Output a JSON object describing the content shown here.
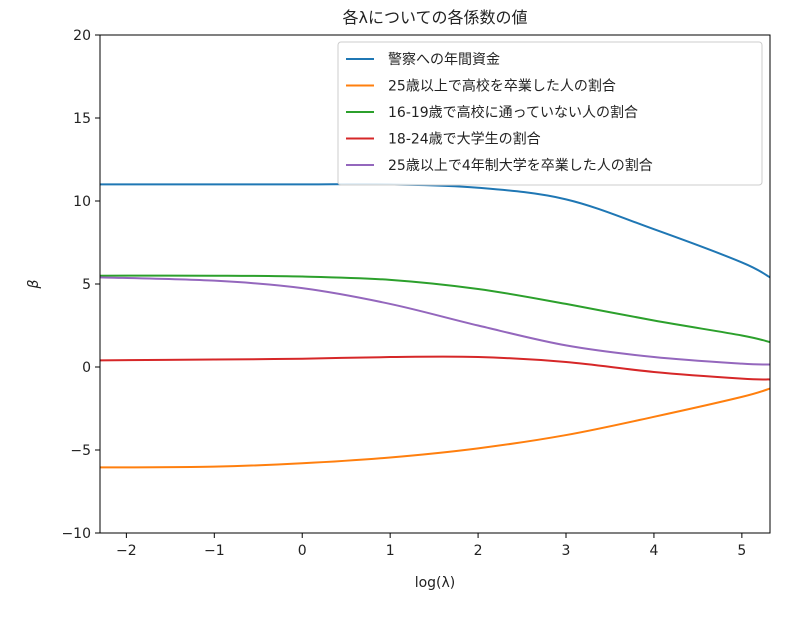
{
  "chart_data": {
    "type": "line",
    "title": "各λについての各係数の値",
    "xlabel": "log(λ)",
    "ylabel": "β",
    "xlim": [
      -2.3,
      5.32
    ],
    "ylim": [
      -10,
      20
    ],
    "xticks": [
      -2,
      -1,
      0,
      1,
      2,
      3,
      4,
      5
    ],
    "xtick_labels": [
      "−2",
      "−1",
      "0",
      "1",
      "2",
      "3",
      "4",
      "5"
    ],
    "yticks": [
      -10,
      -5,
      0,
      5,
      10,
      15,
      20
    ],
    "ytick_labels": [
      "−10",
      "−5",
      "0",
      "5",
      "10",
      "15",
      "20"
    ],
    "grid": false,
    "legend_position": "top-right",
    "x": [
      -2.3,
      -1,
      0,
      1,
      2,
      3,
      4,
      5,
      5.32
    ],
    "series": [
      {
        "name": "警察への年間資金",
        "color": "#1f77b4",
        "values": [
          11.0,
          11.0,
          11.0,
          11.0,
          10.8,
          10.1,
          8.3,
          6.3,
          5.4
        ]
      },
      {
        "name": "25歳以上で高校を卒業した人の割合",
        "color": "#ff7f0e",
        "values": [
          -6.05,
          -6.0,
          -5.8,
          -5.45,
          -4.9,
          -4.1,
          -3.0,
          -1.8,
          -1.3
        ]
      },
      {
        "name": "16-19歳で高校に通っていない人の割合",
        "color": "#2ca02c",
        "values": [
          5.5,
          5.5,
          5.45,
          5.25,
          4.7,
          3.8,
          2.8,
          1.9,
          1.5
        ]
      },
      {
        "name": "18-24歳で大学生の割合",
        "color": "#d62728",
        "values": [
          0.4,
          0.45,
          0.5,
          0.6,
          0.6,
          0.3,
          -0.3,
          -0.7,
          -0.75
        ]
      },
      {
        "name": "25歳以上で4年制大学を卒業した人の割合",
        "color": "#9467bd",
        "values": [
          5.4,
          5.2,
          4.75,
          3.8,
          2.5,
          1.3,
          0.6,
          0.2,
          0.15
        ]
      }
    ]
  }
}
